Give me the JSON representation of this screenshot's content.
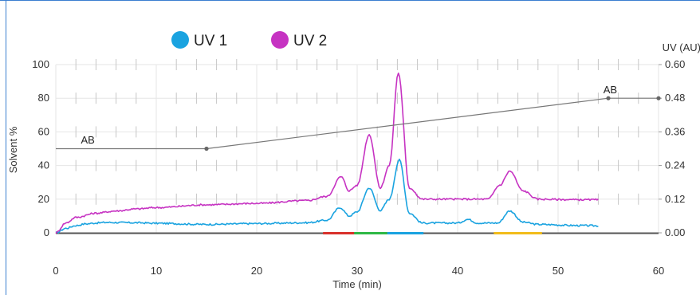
{
  "chart_data": {
    "type": "line",
    "x_label": "Time (min)",
    "y_label_left": "Solvent %",
    "y_label_right": "UV (AU)",
    "x_ticks": [
      0,
      10,
      20,
      30,
      40,
      50,
      60
    ],
    "y_ticks_left": [
      0,
      20,
      40,
      60,
      80,
      100
    ],
    "y_ticks_right": [
      "0.00",
      "0.12",
      "0.24",
      "0.36",
      "0.48",
      "0.60"
    ],
    "xlim": [
      0,
      60
    ],
    "ylim_left": [
      0,
      100
    ],
    "ylim_right": [
      0,
      0.6
    ],
    "grid": true,
    "legend_position": "top-left",
    "series": [
      {
        "name": "UV 1",
        "color": "#1aa3e0",
        "axis": "right",
        "x": [
          0,
          1,
          2,
          3,
          4,
          5,
          8,
          10,
          15,
          20,
          25,
          27,
          28.3,
          29.2,
          30,
          31.2,
          32.3,
          33.2,
          34.2,
          35.2,
          36.5,
          40,
          41,
          42,
          44,
          45.2,
          46.5,
          48,
          52,
          54
        ],
        "y": [
          0.0,
          0.016,
          0.026,
          0.032,
          0.035,
          0.037,
          0.036,
          0.034,
          0.03,
          0.033,
          0.036,
          0.045,
          0.09,
          0.06,
          0.075,
          0.16,
          0.08,
          0.12,
          0.26,
          0.07,
          0.035,
          0.035,
          0.048,
          0.035,
          0.035,
          0.078,
          0.038,
          0.03,
          0.026,
          0.025
        ]
      },
      {
        "name": "UV 2",
        "color": "#c633c2",
        "axis": "right",
        "x": [
          0,
          1,
          2,
          4,
          6,
          8,
          10,
          15,
          20,
          25,
          27,
          28.4,
          29.2,
          30,
          31.2,
          32.3,
          33.2,
          34.1,
          35.2,
          36.5,
          40,
          43,
          44.2,
          45.2,
          46.5,
          48,
          52,
          54
        ],
        "y": [
          0.0,
          0.035,
          0.055,
          0.07,
          0.078,
          0.085,
          0.09,
          0.1,
          0.105,
          0.115,
          0.13,
          0.2,
          0.15,
          0.17,
          0.35,
          0.16,
          0.24,
          0.57,
          0.16,
          0.12,
          0.12,
          0.12,
          0.17,
          0.22,
          0.15,
          0.12,
          0.118,
          0.118
        ]
      },
      {
        "name": "",
        "color": "#777777",
        "axis": "left",
        "x": [
          0,
          15,
          55,
          60
        ],
        "y": [
          50,
          50,
          80,
          80
        ]
      }
    ],
    "annotations": [
      {
        "text": "AB",
        "x": 2.5,
        "y": 53,
        "axis": "left"
      },
      {
        "text": "AB",
        "x": 54.5,
        "y": 83,
        "axis": "left"
      }
    ],
    "fractions": [
      {
        "x_start": 26.6,
        "x_end": 29.7,
        "color": "#d9312b"
      },
      {
        "x_start": 29.7,
        "x_end": 33.0,
        "color": "#2eb845"
      },
      {
        "x_start": 33.0,
        "x_end": 36.6,
        "color": "#1aa3e0"
      },
      {
        "x_start": 43.6,
        "x_end": 48.4,
        "color": "#f2bc1b"
      }
    ],
    "baseline_color": "#555555"
  }
}
